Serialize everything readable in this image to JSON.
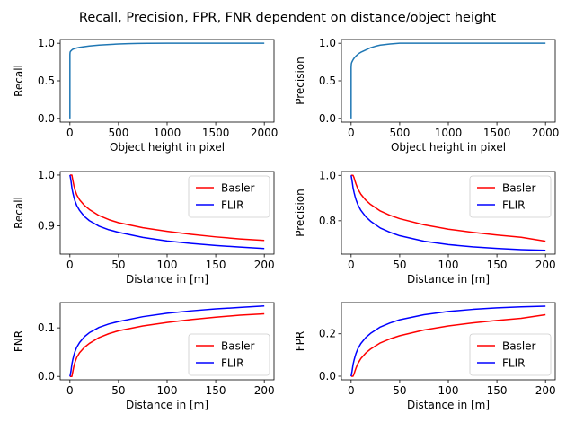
{
  "figure": {
    "suptitle": "Recall, Precision, FPR, FNR dependent on distance/object height"
  },
  "chart_data": [
    {
      "type": "line",
      "xlabel": "Object height in pixel",
      "ylabel": "Recall",
      "xlim": [
        -100,
        2100
      ],
      "ylim": [
        -0.05,
        1.05
      ],
      "xticks": [
        0,
        500,
        1000,
        1500,
        2000
      ],
      "yticks": [
        0.0,
        0.5,
        1.0
      ],
      "legend": null,
      "series": [
        {
          "color": "#1f77b4",
          "x": [
            0,
            0,
            1,
            2,
            3,
            5,
            8,
            12,
            20,
            30,
            50,
            100,
            150,
            200,
            300,
            400,
            500,
            600,
            700,
            800,
            1000,
            1200,
            1500,
            2000
          ],
          "y": [
            0.0,
            0.85,
            0.87,
            0.88,
            0.885,
            0.89,
            0.895,
            0.9,
            0.91,
            0.92,
            0.93,
            0.945,
            0.955,
            0.963,
            0.975,
            0.983,
            0.99,
            0.994,
            0.997,
            0.999,
            1.0,
            1.0,
            1.0,
            1.0
          ]
        }
      ]
    },
    {
      "type": "line",
      "xlabel": "Object height in pixel",
      "ylabel": "Precision",
      "xlim": [
        -100,
        2100
      ],
      "ylim": [
        -0.05,
        1.05
      ],
      "xticks": [
        0,
        500,
        1000,
        1500,
        2000
      ],
      "yticks": [
        0.0,
        0.5,
        1.0
      ],
      "legend": null,
      "series": [
        {
          "color": "#1f77b4",
          "x": [
            0,
            0,
            1,
            2,
            3,
            5,
            8,
            12,
            20,
            30,
            50,
            75,
            100,
            150,
            200,
            250,
            300,
            400,
            500,
            600,
            800,
            1000,
            1500,
            2000
          ],
          "y": [
            0.0,
            0.68,
            0.7,
            0.72,
            0.73,
            0.74,
            0.75,
            0.76,
            0.78,
            0.8,
            0.83,
            0.86,
            0.88,
            0.91,
            0.94,
            0.96,
            0.975,
            0.99,
            1.0,
            1.0,
            1.0,
            1.0,
            1.0,
            1.0
          ]
        }
      ]
    },
    {
      "type": "line",
      "xlabel": "Distance in [m]",
      "ylabel": "Recall",
      "xlim": [
        -10,
        210
      ],
      "ylim": [
        0.844,
        1.007
      ],
      "xticks": [
        0,
        50,
        100,
        150,
        200
      ],
      "yticks": [
        0.9,
        1.0
      ],
      "legend": "upper right",
      "series": [
        {
          "name": "Basler",
          "color": "#ff0000",
          "x": [
            0,
            1,
            2,
            3,
            4,
            5,
            7,
            10,
            15,
            20,
            30,
            40,
            50,
            75,
            100,
            125,
            150,
            175,
            200
          ],
          "y": [
            1.0,
            1.0,
            1.0,
            0.99,
            0.98,
            0.972,
            0.961,
            0.951,
            0.94,
            0.932,
            0.92,
            0.912,
            0.906,
            0.896,
            0.889,
            0.883,
            0.878,
            0.874,
            0.871
          ]
        },
        {
          "name": "FLIR",
          "color": "#0000ff",
          "x": [
            0,
            1,
            2,
            3,
            4,
            5,
            7,
            10,
            15,
            20,
            30,
            40,
            50,
            75,
            100,
            125,
            150,
            175,
            200
          ],
          "y": [
            1.0,
            0.99,
            0.975,
            0.965,
            0.957,
            0.95,
            0.94,
            0.93,
            0.918,
            0.91,
            0.899,
            0.892,
            0.887,
            0.877,
            0.87,
            0.865,
            0.861,
            0.858,
            0.855
          ]
        }
      ]
    },
    {
      "type": "line",
      "xlabel": "Distance in [m]",
      "ylabel": "Precision",
      "xlim": [
        -10,
        210
      ],
      "ylim": [
        0.653,
        1.017
      ],
      "xticks": [
        0,
        50,
        100,
        150,
        200
      ],
      "yticks": [
        0.8,
        1.0
      ],
      "legend": "upper right",
      "series": [
        {
          "name": "Basler",
          "color": "#ff0000",
          "x": [
            0,
            1,
            2,
            3,
            4,
            5,
            7,
            10,
            15,
            20,
            30,
            40,
            50,
            75,
            100,
            125,
            150,
            175,
            200
          ],
          "y": [
            1.0,
            1.0,
            1.0,
            0.99,
            0.975,
            0.962,
            0.94,
            0.917,
            0.891,
            0.872,
            0.843,
            0.824,
            0.809,
            0.782,
            0.763,
            0.749,
            0.737,
            0.727,
            0.71
          ]
        },
        {
          "name": "FLIR",
          "color": "#0000ff",
          "x": [
            0,
            1,
            2,
            3,
            4,
            5,
            7,
            10,
            15,
            20,
            30,
            40,
            50,
            75,
            100,
            125,
            150,
            175,
            200
          ],
          "y": [
            1.0,
            0.975,
            0.945,
            0.925,
            0.908,
            0.893,
            0.87,
            0.846,
            0.818,
            0.798,
            0.768,
            0.749,
            0.734,
            0.71,
            0.695,
            0.685,
            0.678,
            0.673,
            0.67
          ]
        }
      ]
    },
    {
      "type": "line",
      "xlabel": "Distance in [m]",
      "ylabel": "FNR",
      "xlim": [
        -10,
        210
      ],
      "ylim": [
        -0.007,
        0.152
      ],
      "xticks": [
        0,
        50,
        100,
        150,
        200
      ],
      "yticks": [
        0.0,
        0.1
      ],
      "legend": "lower right",
      "series": [
        {
          "name": "Basler",
          "color": "#ff0000",
          "x": [
            0,
            1,
            2,
            3,
            4,
            5,
            7,
            10,
            15,
            20,
            30,
            40,
            50,
            75,
            100,
            125,
            150,
            175,
            200
          ],
          "y": [
            0.0,
            0.0,
            0.0,
            0.01,
            0.02,
            0.028,
            0.039,
            0.049,
            0.06,
            0.068,
            0.08,
            0.088,
            0.094,
            0.104,
            0.111,
            0.117,
            0.122,
            0.126,
            0.129
          ]
        },
        {
          "name": "FLIR",
          "color": "#0000ff",
          "x": [
            0,
            1,
            2,
            3,
            4,
            5,
            7,
            10,
            15,
            20,
            30,
            40,
            50,
            75,
            100,
            125,
            150,
            175,
            200
          ],
          "y": [
            0.0,
            0.01,
            0.025,
            0.035,
            0.043,
            0.05,
            0.06,
            0.07,
            0.082,
            0.09,
            0.101,
            0.108,
            0.113,
            0.123,
            0.13,
            0.135,
            0.139,
            0.142,
            0.145
          ]
        }
      ]
    },
    {
      "type": "line",
      "xlabel": "Distance in [m]",
      "ylabel": "FPR",
      "xlim": [
        -10,
        210
      ],
      "ylim": [
        -0.017,
        0.347
      ],
      "xticks": [
        0,
        50,
        100,
        150,
        200
      ],
      "yticks": [
        0.0,
        0.2
      ],
      "legend": "lower right",
      "series": [
        {
          "name": "Basler",
          "color": "#ff0000",
          "x": [
            0,
            1,
            2,
            3,
            4,
            5,
            7,
            10,
            15,
            20,
            30,
            40,
            50,
            75,
            100,
            125,
            150,
            175,
            200
          ],
          "y": [
            0.0,
            0.0,
            0.0,
            0.01,
            0.025,
            0.038,
            0.06,
            0.083,
            0.109,
            0.128,
            0.157,
            0.176,
            0.191,
            0.218,
            0.237,
            0.251,
            0.263,
            0.273,
            0.29
          ]
        },
        {
          "name": "FLIR",
          "color": "#0000ff",
          "x": [
            0,
            1,
            2,
            3,
            4,
            5,
            7,
            10,
            15,
            20,
            30,
            40,
            50,
            75,
            100,
            125,
            150,
            175,
            200
          ],
          "y": [
            0.0,
            0.025,
            0.055,
            0.075,
            0.092,
            0.107,
            0.13,
            0.154,
            0.182,
            0.202,
            0.232,
            0.251,
            0.266,
            0.29,
            0.305,
            0.315,
            0.322,
            0.327,
            0.33
          ]
        }
      ]
    }
  ]
}
